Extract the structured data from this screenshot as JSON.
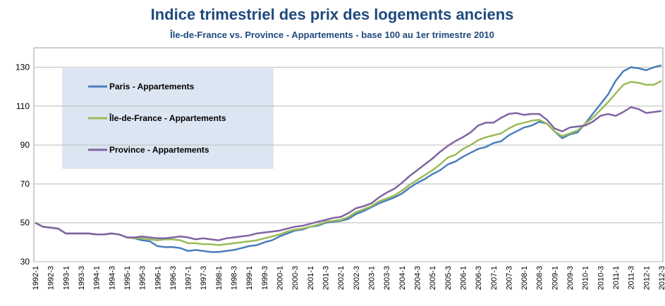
{
  "chart_data": {
    "type": "line",
    "title": "Indice trimestriel des prix des logements anciens",
    "subtitle": "Île-de-France vs. Province - Appartements - base 100 au 1er trimestre 2010",
    "categories": [
      "1992-1",
      null,
      "1992-3",
      null,
      "1993-1",
      null,
      "1993-3",
      null,
      "1994-1",
      null,
      "1994-3",
      null,
      "1995-1",
      null,
      "1995-3",
      null,
      "1996-1",
      null,
      "1996-3",
      null,
      "1997-1",
      null,
      "1997-3",
      null,
      "1998-1",
      null,
      "1998-3",
      null,
      "1999-1",
      null,
      "1999-3",
      null,
      "2000-1",
      null,
      "2000-3",
      null,
      "2001-1",
      null,
      "2001-3",
      null,
      "2002-1",
      null,
      "2002-3",
      null,
      "2003-1",
      null,
      "2003-3",
      null,
      "2004-1",
      null,
      "2004-3",
      null,
      "2005-1",
      null,
      "2005-3",
      null,
      "2006-1",
      null,
      "2006-3",
      null,
      "2007-1",
      null,
      "2007-3",
      null,
      "2008-1",
      null,
      "2008-3",
      null,
      "2009-1",
      null,
      "2009-3",
      null,
      "2010-1",
      null,
      "2010-3",
      null,
      "2011-1",
      null,
      "2011-3",
      null,
      "2012-1",
      null,
      "2012-3"
    ],
    "series": [
      {
        "name": "Paris - Appartements",
        "color": "#4a7ebb",
        "values": [
          50,
          48,
          47.5,
          47,
          44.5,
          44.5,
          44.5,
          44.5,
          44,
          44,
          44.5,
          44,
          42.5,
          42,
          41,
          40.5,
          38,
          37.5,
          37.5,
          37,
          35.5,
          36,
          35.5,
          35,
          35,
          35.5,
          36,
          37,
          38,
          38.5,
          40,
          41,
          43,
          44.5,
          46,
          46.5,
          48,
          48.5,
          50,
          50.5,
          51,
          52,
          54.5,
          56,
          58,
          60,
          61.5,
          63,
          65,
          68,
          70.5,
          72.5,
          75,
          77,
          80,
          81.5,
          84,
          86,
          88,
          89,
          91,
          92,
          95,
          97,
          99,
          100,
          102,
          101,
          97,
          93.5,
          95.5,
          96.5,
          101,
          106,
          111,
          116,
          123,
          128,
          130,
          129.5,
          128.5,
          130,
          131
        ]
      },
      {
        "name": "Île-de-France - Appartements",
        "color": "#9bbb59",
        "values": [
          50,
          48,
          47.5,
          47,
          44.5,
          44.5,
          44.5,
          44.5,
          44,
          44,
          44.5,
          44,
          42.5,
          42,
          42,
          41.5,
          41,
          41.5,
          41.5,
          41,
          39.5,
          39.5,
          39,
          39,
          38.5,
          39,
          39.5,
          40,
          40.5,
          41,
          42,
          43,
          44,
          45.5,
          46.5,
          47,
          48,
          49,
          50.5,
          51,
          51.5,
          53,
          55.5,
          57,
          58.5,
          61,
          62.5,
          64,
          66.5,
          69.5,
          72,
          74.5,
          77,
          80,
          83.5,
          85,
          88,
          90,
          92.5,
          94,
          95,
          96,
          98.5,
          100.5,
          101.5,
          102.5,
          103,
          101,
          97,
          94.5,
          96,
          97.5,
          101,
          104,
          108,
          112,
          116.5,
          121,
          122.5,
          122,
          121,
          121,
          123
        ]
      },
      {
        "name": "Province - Appartements",
        "color": "#8064a2",
        "values": [
          50,
          48,
          47.5,
          47,
          44.5,
          44.5,
          44.5,
          44.5,
          44,
          44,
          44.5,
          44,
          42.5,
          42.5,
          43,
          42.5,
          42,
          42,
          42.5,
          43,
          42.5,
          41.5,
          42,
          41.5,
          41,
          42,
          42.5,
          43,
          43.5,
          44.5,
          45,
          45.5,
          46,
          47,
          48,
          48.5,
          49.5,
          50.5,
          51.5,
          52.5,
          53,
          55,
          57.5,
          58.5,
          60,
          63,
          65.5,
          67.5,
          70.5,
          74,
          77,
          80,
          83,
          86.5,
          89.5,
          92,
          94,
          96.5,
          100,
          101.5,
          101.5,
          104,
          106,
          106.5,
          105.5,
          106,
          106,
          103,
          98.5,
          97,
          99,
          99.5,
          100,
          102,
          105,
          106,
          105,
          107,
          109.5,
          108.5,
          106.5,
          107,
          107.5
        ]
      }
    ],
    "ylim": [
      30,
      140
    ],
    "yticks": [
      30,
      50,
      70,
      90,
      110,
      130
    ],
    "grid": true
  }
}
